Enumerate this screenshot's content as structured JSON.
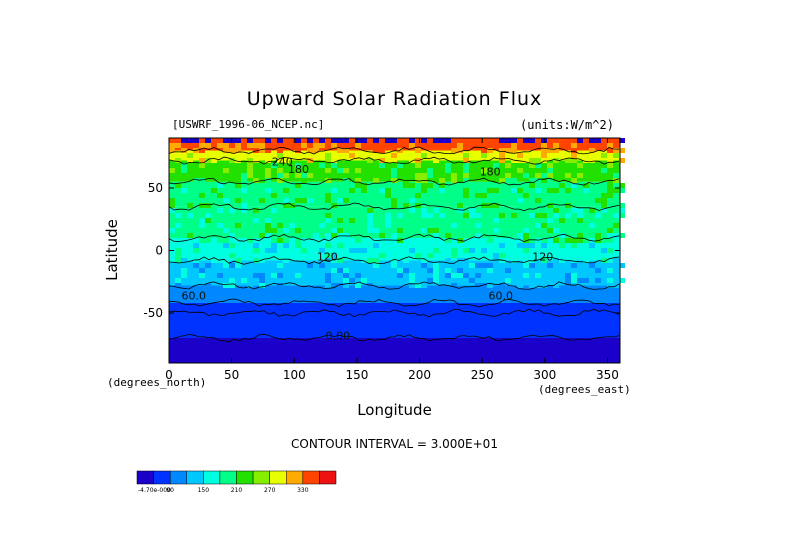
{
  "chart_data": {
    "type": "heatmap",
    "title": "Upward Solar Radiation Flux",
    "subtitle_left": "[USWRF_1996-06_NCEP.nc]",
    "subtitle_right": "(units:W/m^2)",
    "xlabel": "Longitude",
    "ylabel": "Latitude",
    "x_unit_label": "(degrees_east)",
    "y_unit_label": "(degrees_north)",
    "xlim": [
      0,
      360
    ],
    "ylim": [
      -90,
      90
    ],
    "x_ticks": [
      0,
      50,
      100,
      150,
      200,
      250,
      300,
      350
    ],
    "y_ticks": [
      50,
      0,
      -50
    ],
    "contour_interval_text": "CONTOUR INTERVAL = 3.000E+01",
    "contour_labels": [
      {
        "text": "0.00",
        "lon": 125,
        "lat": -71
      },
      {
        "text": "60.0",
        "lon": 10,
        "lat": -39
      },
      {
        "text": "60.0",
        "lon": 255,
        "lat": -39
      },
      {
        "text": "120",
        "lon": 118,
        "lat": -8
      },
      {
        "text": "120",
        "lon": 290,
        "lat": -8
      },
      {
        "text": "180",
        "lon": 95,
        "lat": 62
      },
      {
        "text": "180",
        "lon": 248,
        "lat": 60
      },
      {
        "text": "240",
        "lon": 82,
        "lat": 68
      }
    ],
    "colorbar": {
      "labels": [
        "-4.70e-000",
        "90",
        "150",
        "210",
        "270",
        "330"
      ],
      "colors": [
        "#1a00c8",
        "#0033ff",
        "#0088ff",
        "#00c8ff",
        "#00ffe0",
        "#00ff88",
        "#22e000",
        "#88ee00",
        "#e8ff00",
        "#ffaa00",
        "#ff4400",
        "#ee1111"
      ]
    },
    "zonal_bands": [
      {
        "lat_from": -90,
        "lat_to": -70,
        "value": 0
      },
      {
        "lat_from": -70,
        "lat_to": -50,
        "value": 30
      },
      {
        "lat_from": -50,
        "lat_to": -42,
        "value": 45
      },
      {
        "lat_from": -42,
        "lat_to": -28,
        "value": 75
      },
      {
        "lat_from": -28,
        "lat_to": -8,
        "value": 105
      },
      {
        "lat_from": -8,
        "lat_to": 10,
        "value": 135
      },
      {
        "lat_from": 10,
        "lat_to": 35,
        "value": 160
      },
      {
        "lat_from": 35,
        "lat_to": 55,
        "value": 175
      },
      {
        "lat_from": 55,
        "lat_to": 72,
        "value": 195
      },
      {
        "lat_from": 72,
        "lat_to": 80,
        "value": 255
      },
      {
        "lat_from": 80,
        "lat_to": 90,
        "value": 300
      }
    ]
  }
}
